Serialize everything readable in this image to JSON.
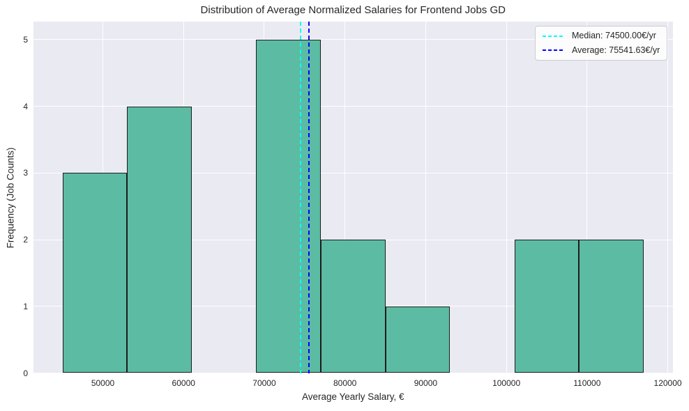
{
  "chart_data": {
    "type": "bar",
    "subtype": "histogram",
    "title": "Distribution of Average Normalized Salaries for Frontend Jobs GD",
    "xlabel": "Average Yearly Salary, €",
    "ylabel": "Frequency (Job Counts)",
    "bin_edges": [
      45000,
      53000,
      61000,
      69000,
      77000,
      85000,
      93000,
      101000,
      109000,
      117000
    ],
    "counts": [
      3,
      4,
      0,
      5,
      2,
      1,
      0,
      2,
      2
    ],
    "xticks": [
      50000,
      60000,
      70000,
      80000,
      90000,
      100000,
      110000,
      120000
    ],
    "xtick_labels": [
      "50000",
      "60000",
      "70000",
      "80000",
      "90000",
      "100000",
      "110000",
      "120000"
    ],
    "yticks": [
      0,
      1,
      2,
      3,
      4,
      5
    ],
    "ytick_labels": [
      "0",
      "1",
      "2",
      "3",
      "4",
      "5"
    ],
    "xlim": [
      41400,
      120600
    ],
    "ylim": [
      0,
      5.27
    ],
    "grid": true,
    "plot_bg_color": "#eaeaf2",
    "grid_color": "#ffffff",
    "bar_color": "#5cbba3",
    "bar_edge_color": "#1c1c1c",
    "ref_lines": [
      {
        "name": "median",
        "value": 74500,
        "color": "#00ffff",
        "style": "dashed"
      },
      {
        "name": "average",
        "value": 75541.63,
        "color": "#0000ff",
        "style": "dashed"
      }
    ],
    "legend": {
      "position": "upper right",
      "entries": [
        {
          "name": "median",
          "label": "Median: 74500.00€/yr",
          "color": "#00ffff"
        },
        {
          "name": "average",
          "label": "Average: 75541.63€/yr",
          "color": "#0000ff"
        }
      ]
    }
  }
}
